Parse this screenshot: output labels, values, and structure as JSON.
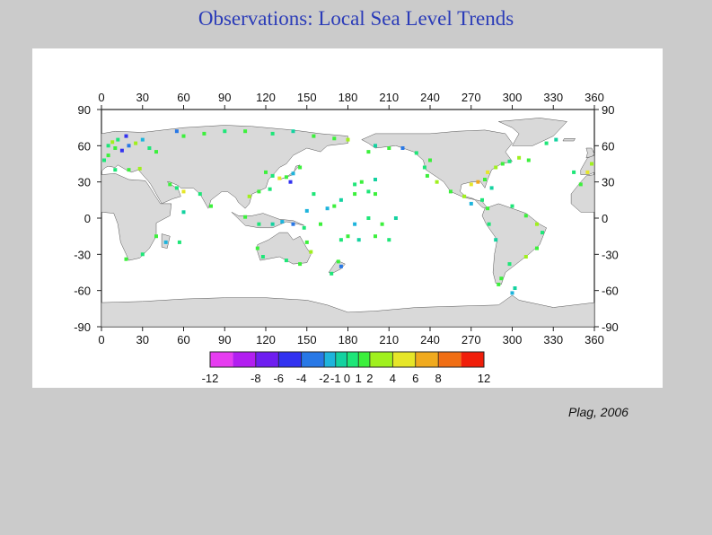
{
  "title": "Observations: Local Sea Level Trends",
  "credit": "Plag, 2006",
  "map": {
    "lon_ticks": [
      "0",
      "30",
      "60",
      "90",
      "120",
      "150",
      "180",
      "210",
      "240",
      "270",
      "300",
      "330",
      "360"
    ],
    "lat_ticks": [
      "90",
      "60",
      "30",
      "0",
      "-30",
      "-60",
      "-90"
    ],
    "land_color": "#d9d9d9",
    "coast_color": "#555555"
  },
  "colorbar": {
    "tick_labels": [
      "-12",
      "-8",
      "-6",
      "-4",
      "-2",
      "-1",
      "0",
      "1",
      "2",
      "4",
      "6",
      "8",
      "12"
    ],
    "colors": [
      "#e63cf0",
      "#b21ef0",
      "#6e1ef0",
      "#3232f0",
      "#2878e6",
      "#1eb4dc",
      "#14d2a0",
      "#1ee678",
      "#3cf03c",
      "#a0f01e",
      "#e6e628",
      "#f0aa1e",
      "#f06e14",
      "#f01e0a"
    ]
  },
  "stations_legend": {
    "low": "blue/green",
    "high": "yellow/orange"
  }
}
